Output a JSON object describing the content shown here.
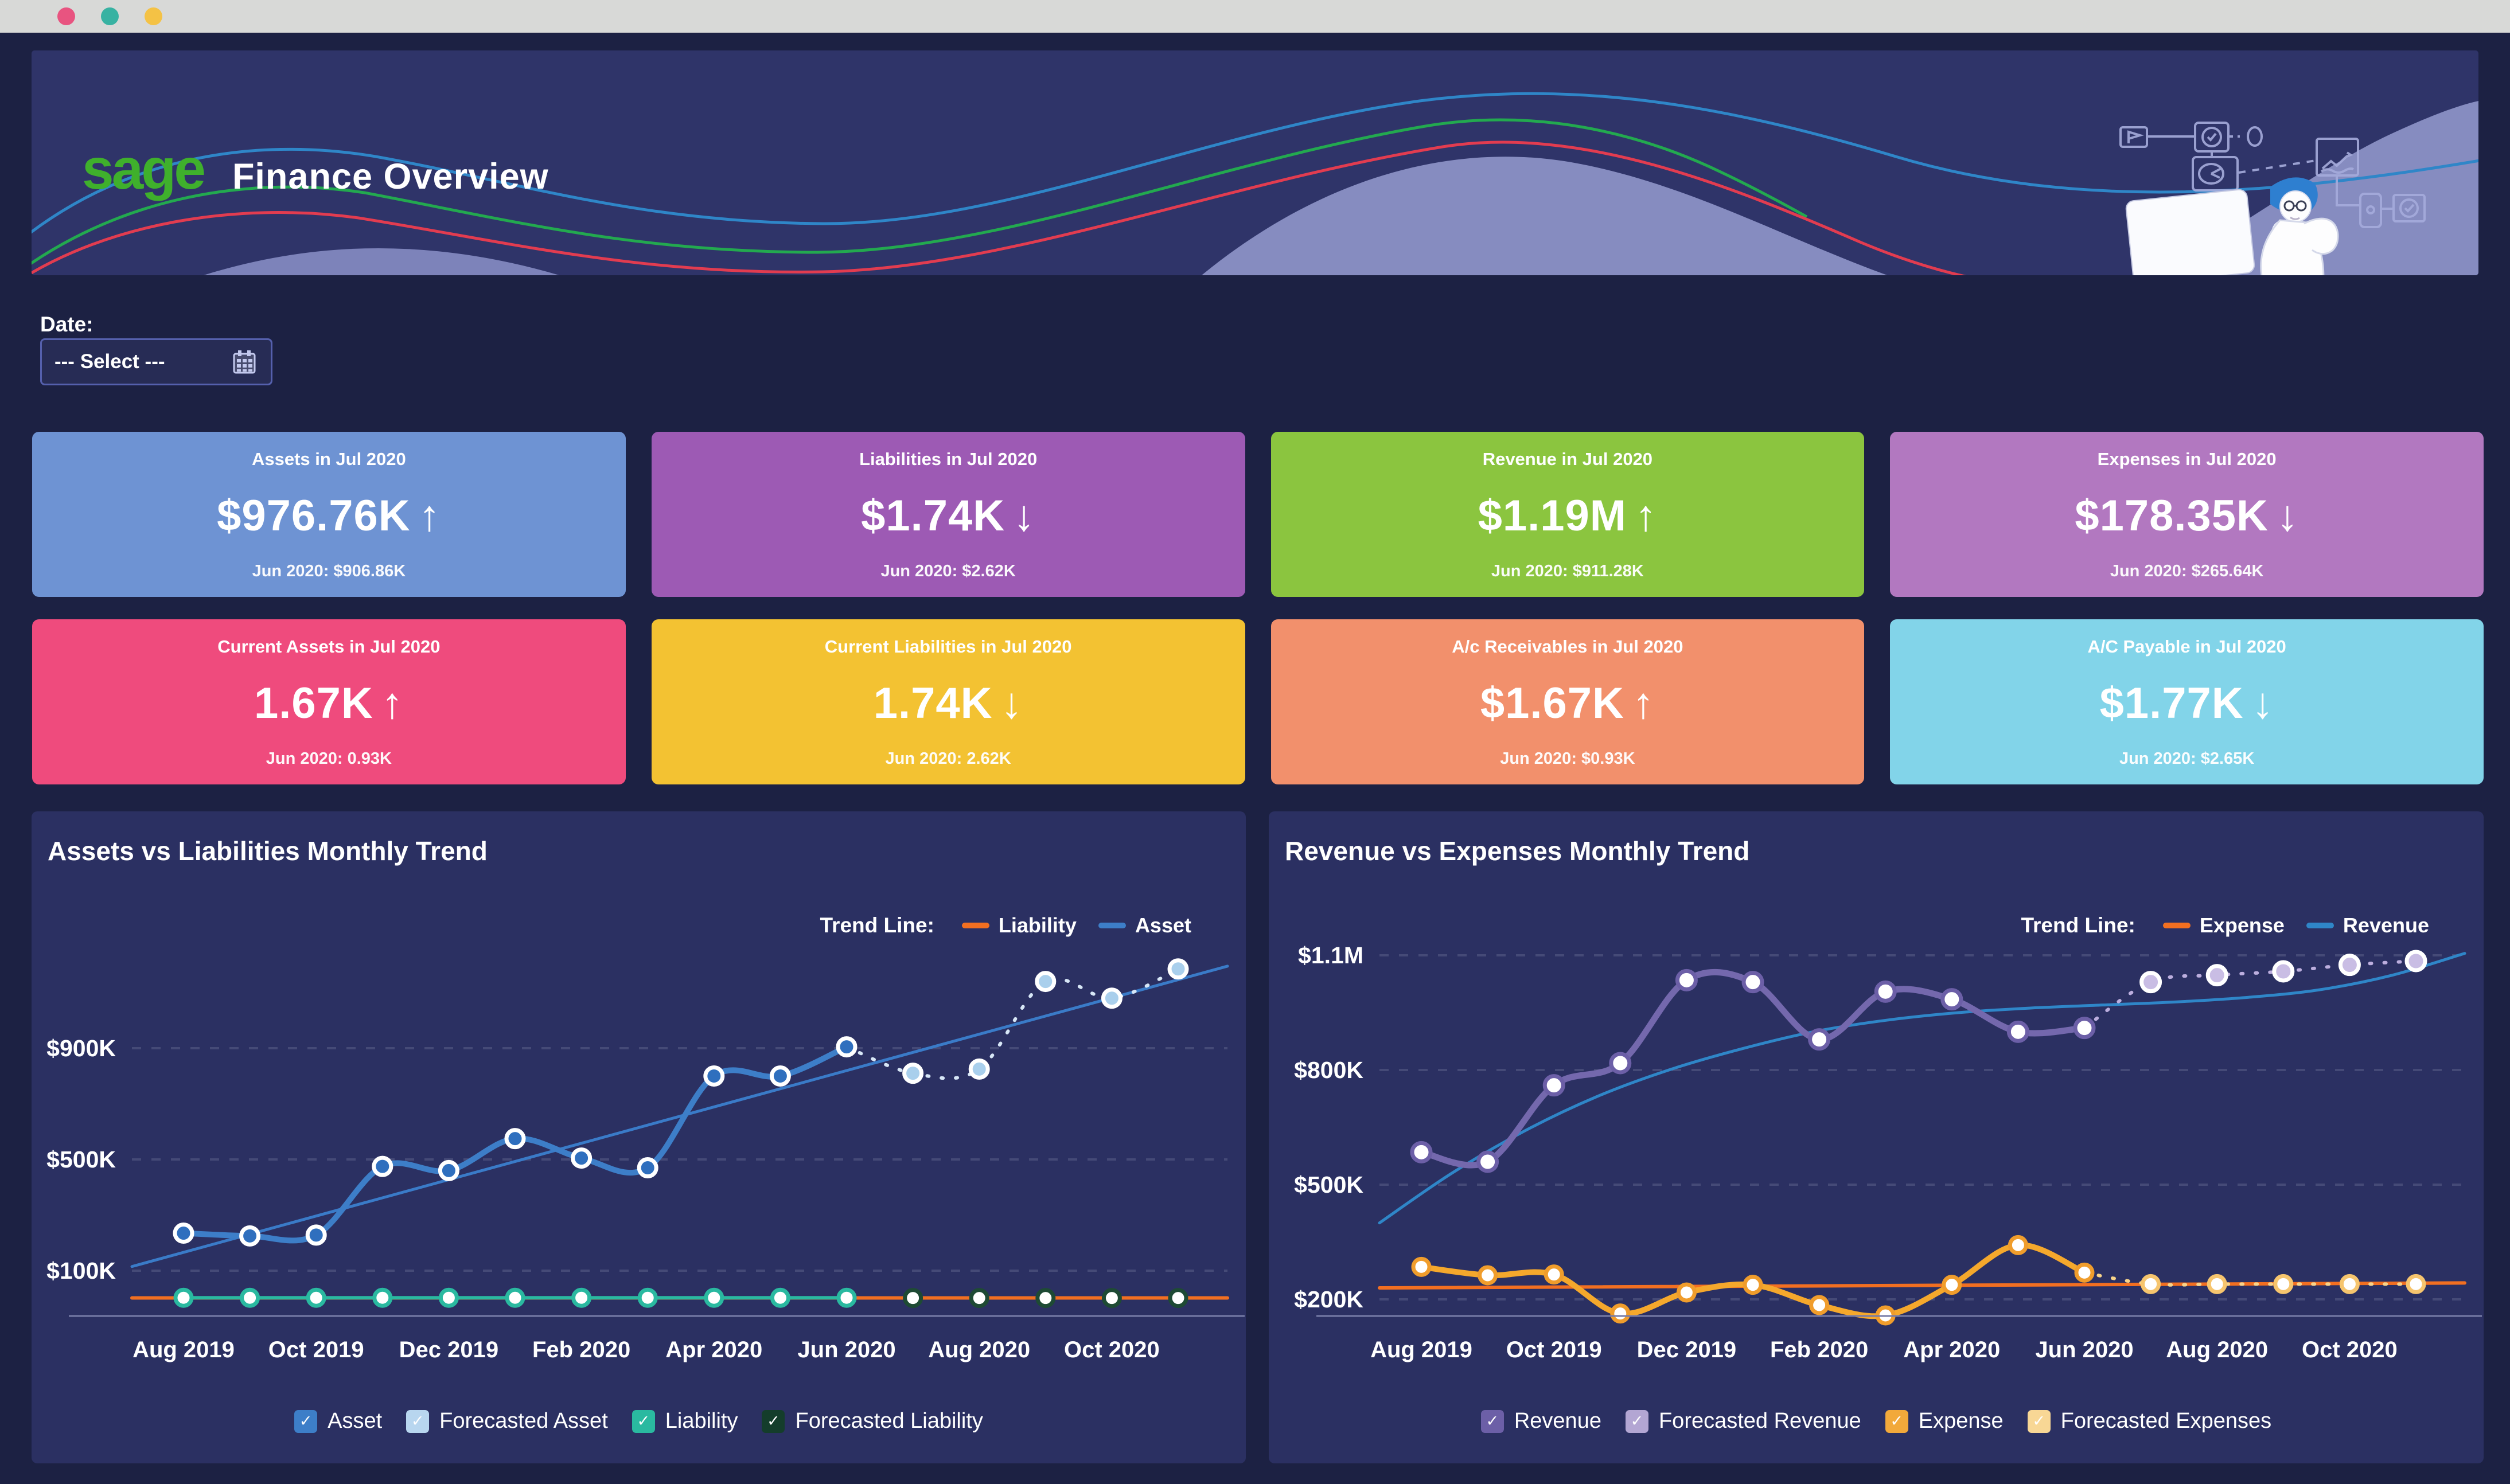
{
  "browser": {
    "traffic_light_colors": [
      "#e85480",
      "#38b2a2",
      "#f4c245"
    ]
  },
  "header": {
    "logo_text": "sage",
    "logo_color": "#3fb02c",
    "title": "Finance Overview"
  },
  "date_filter": {
    "label": "Date:",
    "value": "--- Select ---",
    "icon": "calendar-icon"
  },
  "kpi_cards": [
    {
      "title": "Assets in Jul 2020",
      "value": "$976.76K",
      "arrow": "↑",
      "subtext": "Jun 2020: $906.86K",
      "bg": "#6e93d3"
    },
    {
      "title": "Liabilities in Jul 2020",
      "value": "$1.74K",
      "arrow": "↓",
      "subtext": "Jun 2020: $2.62K",
      "bg": "#9d5ab4"
    },
    {
      "title": "Revenue in Jul 2020",
      "value": "$1.19M",
      "arrow": "↑",
      "subtext": "Jun 2020: $911.28K",
      "bg": "#8bc53f"
    },
    {
      "title": "Expenses in Jul 2020",
      "value": "$178.35K",
      "arrow": "↓",
      "subtext": "Jun 2020: $265.64K",
      "bg": "#b278c0"
    },
    {
      "title": "Current Assets in Jul 2020",
      "value": "1.67K",
      "arrow": "↑",
      "subtext": "Jun 2020: 0.93K",
      "bg": "#ef4b7d"
    },
    {
      "title": "Current Liabilities in Jul 2020",
      "value": "1.74K",
      "arrow": "↓",
      "subtext": "Jun 2020: 2.62K",
      "bg": "#f3c232"
    },
    {
      "title": "A/c Receivables in Jul 2020",
      "value": "$1.67K",
      "arrow": "↑",
      "subtext": "Jun 2020: $0.93K",
      "bg": "#f2906c"
    },
    {
      "title": "A/C Payable in Jul 2020",
      "value": "$1.77K",
      "arrow": "↓",
      "subtext": "Jun 2020: $2.65K",
      "bg": "#82d4e9"
    }
  ],
  "legend_check_glyph": "✓",
  "chart_data": [
    {
      "type": "line",
      "title": "Assets vs Liabilities Monthly Trend",
      "trend_line_label": "Trend Line:",
      "trend_legend": [
        {
          "name": "Liability",
          "color": "#f26f21"
        },
        {
          "name": "Asset",
          "color": "#3d7ec8"
        }
      ],
      "months": [
        "Aug 2019",
        "Sep 2019",
        "Oct 2019",
        "Nov 2019",
        "Dec 2019",
        "Jan 2020",
        "Feb 2020",
        "Mar 2020",
        "Apr 2020",
        "May 2020",
        "Jun 2020",
        "Jul 2020",
        "Aug 2020",
        "Sep 2020",
        "Oct 2020",
        "Nov 2020"
      ],
      "x_tick_labels": [
        "Aug 2019",
        "Oct 2019",
        "Dec 2019",
        "Feb 2020",
        "Apr 2020",
        "Jun 2020",
        "Aug 2020",
        "Oct 2020"
      ],
      "y_ticks": [
        {
          "label": "$900K",
          "value": 900
        },
        {
          "label": "$500K",
          "value": 500
        },
        {
          "label": "$100K",
          "value": 100
        }
      ],
      "unit": "thousand USD",
      "series": [
        {
          "name": "Asset",
          "line_color": "#3d7ec8",
          "line_width": 10,
          "marker_fill": "#2f6fbe",
          "marker_stroke": "#ffffff",
          "marker_r": 15,
          "values_k": [
            235,
            225,
            228,
            475,
            460,
            575,
            505,
            470,
            800,
            800,
            905
          ],
          "forecast_values_k": [
            810,
            825,
            1140,
            1080,
            1185
          ],
          "forecast": {
            "line_color": "#d7e6f6",
            "draw_line": true,
            "marker_fill": "#a9cfec",
            "marker_stroke": "#ffffff"
          }
        },
        {
          "name": "Liability",
          "line_color": "#2ab9a0",
          "line_width": 6,
          "marker_fill": "#ffffff",
          "marker_stroke": "#2ab9a0",
          "marker_r": 14,
          "values_k": [
            2.6,
            2.6,
            2.6,
            2.6,
            2.6,
            2.6,
            2.6,
            2.6,
            2.6,
            2.6,
            2.62
          ],
          "forecast_values_k": [
            1.74,
            1.74,
            1.74,
            1.74,
            1.74
          ],
          "forecast": {
            "line_color": "#1e4a34",
            "draw_line": false,
            "marker_fill": "#ffffff",
            "marker_stroke": "#1e4a34"
          }
        }
      ],
      "trend_lines": [
        {
          "name": "Asset",
          "color": "#3a7bc8",
          "width": 5,
          "start_k": 115,
          "end_k": 1195
        },
        {
          "name": "Liability",
          "color": "#f26f21",
          "width": 6,
          "start_k": 2,
          "end_k": 2
        }
      ],
      "legend": [
        {
          "label": "Asset",
          "color": "#3d7ec8"
        },
        {
          "label": "Forecasted Asset",
          "color": "#b8d6ef"
        },
        {
          "label": "Liability",
          "color": "#2ab9a0"
        },
        {
          "label": "Forecasted Liability",
          "color": "#143d2b"
        }
      ],
      "layout": {
        "scale_anchors": [
          [
            900,
            413
          ],
          [
            100,
            801
          ]
        ],
        "axis_y": 880,
        "x0": 265,
        "step": 115.6,
        "plot_left": 175,
        "plot_right": 2085,
        "grid_on": true,
        "legend_position": "bottom"
      }
    },
    {
      "type": "line",
      "title": "Revenue vs Expenses Monthly Trend",
      "trend_line_label": "Trend Line:",
      "trend_legend": [
        {
          "name": "Expense",
          "color": "#f26f21"
        },
        {
          "name": "Revenue",
          "color": "#2f86c8"
        }
      ],
      "months": [
        "Aug 2019",
        "Sep 2019",
        "Oct 2019",
        "Nov 2019",
        "Dec 2019",
        "Jan 2020",
        "Feb 2020",
        "Mar 2020",
        "Apr 2020",
        "May 2020",
        "Jun 2020",
        "Jul 2020",
        "Aug 2020",
        "Sep 2020",
        "Oct 2020",
        "Nov 2020"
      ],
      "x_tick_labels": [
        "Aug 2019",
        "Oct 2019",
        "Dec 2019",
        "Feb 2020",
        "Apr 2020",
        "Jun 2020",
        "Aug 2020",
        "Oct 2020"
      ],
      "y_ticks": [
        {
          "label": "$1.1M",
          "value": 1100
        },
        {
          "label": "$800K",
          "value": 800
        },
        {
          "label": "$500K",
          "value": 500
        },
        {
          "label": "$200K",
          "value": 200
        }
      ],
      "unit": "thousand USD",
      "series": [
        {
          "name": "Revenue",
          "line_color": "#7468ad",
          "line_width": 11,
          "marker_fill": "#ffffff",
          "marker_stroke": "#6c5fa7",
          "marker_r": 16,
          "values_k": [
            585,
            560,
            760,
            818,
            1035,
            1030,
            880,
            1005,
            985,
            900,
            910
          ],
          "forecast_values_k": [
            1030,
            1048,
            1058,
            1075,
            1085
          ],
          "forecast": {
            "line_color": "#bcaede",
            "draw_line": true,
            "marker_fill": "#c9bde4",
            "marker_stroke": "#ffffff"
          }
        },
        {
          "name": "Expense",
          "line_color": "#f5a82c",
          "line_width": 10,
          "marker_fill": "#ffffff",
          "marker_stroke": "#f09d2c",
          "marker_r": 14,
          "values_k": [
            285,
            263,
            265,
            163,
            218,
            238,
            185,
            158,
            238,
            342,
            270
          ],
          "forecast_values_k": [
            240,
            240,
            240,
            240,
            240
          ],
          "forecast": {
            "line_color": "#f8d48a",
            "draw_line": true,
            "marker_fill": "#ffffff",
            "marker_stroke": "#f6c56e"
          }
        }
      ],
      "trend_lines": [
        {
          "name": "Revenue",
          "color": "#2f86c8",
          "width": 5,
          "curve_k": [
            400,
            530,
            640,
            730,
            800,
            855,
            900,
            930,
            950,
            962,
            970,
            978,
            990,
            1010,
            1048,
            1105
          ]
        },
        {
          "name": "Expense",
          "color": "#f26f21",
          "width": 6,
          "start_k": 230,
          "end_k": 243
        }
      ],
      "legend": [
        {
          "label": "Revenue",
          "color": "#6c5fa7"
        },
        {
          "label": "Forecasted Revenue",
          "color": "#b3a6d3"
        },
        {
          "label": "Expense",
          "color": "#f2a93b"
        },
        {
          "label": "Forecasted Expenses",
          "color": "#f8d795"
        }
      ],
      "layout": {
        "scale_anchors": [
          [
            1100,
            251
          ],
          [
            200,
            851
          ]
        ],
        "axis_y": 880,
        "x0": 266,
        "step": 115.6,
        "plot_left": 193,
        "plot_right": 2085,
        "grid_on": true,
        "legend_position": "bottom"
      }
    }
  ]
}
